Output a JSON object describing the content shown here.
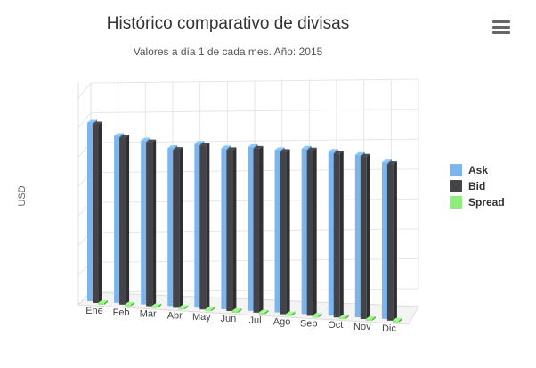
{
  "chart_data": {
    "type": "bar",
    "title": "Histórico comparativo de divisas",
    "subtitle": "Valores a día 1 de cada mes. Año: 2015",
    "ylabel": "USD",
    "xlabel": "",
    "categories": [
      "Ene",
      "Feb",
      "Mar",
      "Abr",
      "May",
      "Jun",
      "Jul",
      "Ago",
      "Sep",
      "Oct",
      "Nov",
      "Dic"
    ],
    "ylim": [
      0,
      1.4
    ],
    "grid": true,
    "legend_position": "right",
    "series": [
      {
        "name": "Ask",
        "color": "#7cb5ec",
        "values": [
          1.21,
          1.13,
          1.11,
          1.07,
          1.11,
          1.09,
          1.11,
          1.1,
          1.12,
          1.11,
          1.1,
          1.06
        ]
      },
      {
        "name": "Bid",
        "color": "#434348",
        "values": [
          1.21,
          1.13,
          1.11,
          1.07,
          1.11,
          1.09,
          1.11,
          1.1,
          1.12,
          1.11,
          1.1,
          1.06
        ]
      },
      {
        "name": "Spread",
        "color": "#90ed7d",
        "values": [
          0.004,
          0.004,
          0.004,
          0.004,
          0.004,
          0.004,
          0.004,
          0.004,
          0.004,
          0.004,
          0.004,
          0.004
        ]
      }
    ]
  },
  "menu": {
    "icon": "hamburger-menu-icon"
  }
}
